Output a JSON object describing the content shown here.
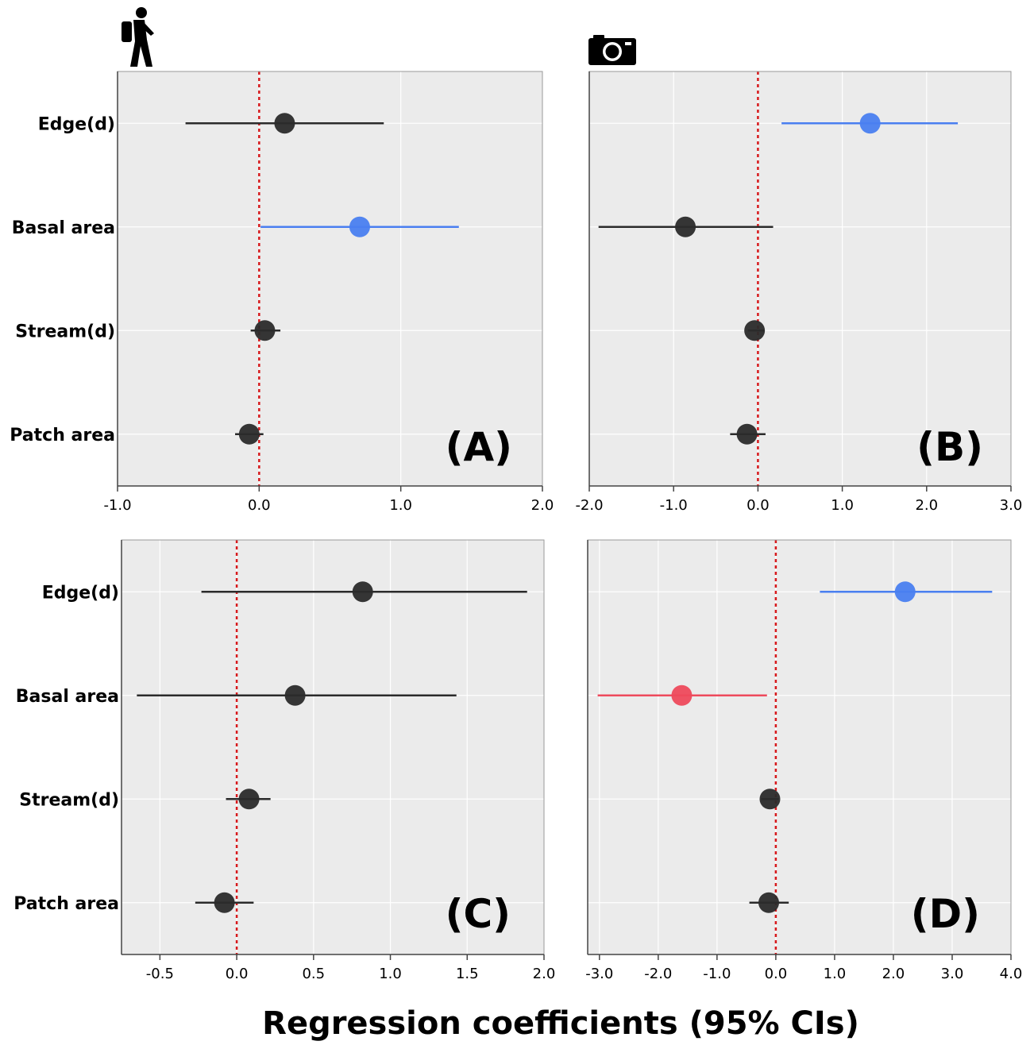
{
  "x_axis_title": "Regression coefficients (95% CIs)",
  "icons": {
    "left_column": "hiker-icon",
    "right_column": "camera-icon"
  },
  "colors": {
    "panel_bg": "#ebebeb",
    "grid": "#ffffff",
    "neutral": "#2b2b2b",
    "positive": "#4a7ff0",
    "negative": "#ee4a5c",
    "zero_line": "#d7191c"
  },
  "chart_data": [
    {
      "id": "A",
      "type": "scatter",
      "panel_label": "(A)",
      "icon": "hiker-icon",
      "categories": [
        "Edge(d)",
        "Basal area",
        "Stream(d)",
        "Patch area"
      ],
      "xlim": [
        -1.0,
        2.0
      ],
      "xticks": [
        -1.0,
        0.0,
        1.0,
        2.0
      ],
      "xtick_labels": [
        "-1.0",
        "0.0",
        "1.0",
        "2.0"
      ],
      "points": [
        {
          "category": "Edge(d)",
          "estimate": 0.18,
          "lower": -0.52,
          "upper": 0.88,
          "color": "neutral"
        },
        {
          "category": "Basal area",
          "estimate": 0.71,
          "lower": 0.01,
          "upper": 1.41,
          "color": "positive"
        },
        {
          "category": "Stream(d)",
          "estimate": 0.04,
          "lower": -0.06,
          "upper": 0.15,
          "color": "neutral"
        },
        {
          "category": "Patch area",
          "estimate": -0.07,
          "lower": -0.17,
          "upper": 0.03,
          "color": "neutral"
        }
      ]
    },
    {
      "id": "B",
      "type": "scatter",
      "panel_label": "(B)",
      "icon": "camera-icon",
      "categories": [
        "Edge(d)",
        "Basal area",
        "Stream(d)",
        "Patch area"
      ],
      "xlim": [
        -2.0,
        3.0
      ],
      "xticks": [
        -2.0,
        -1.0,
        0.0,
        1.0,
        2.0,
        3.0
      ],
      "xtick_labels": [
        "-2.0",
        "-1.0",
        "0.0",
        "1.0",
        "2.0",
        "3.0"
      ],
      "points": [
        {
          "category": "Edge(d)",
          "estimate": 1.33,
          "lower": 0.28,
          "upper": 2.37,
          "color": "positive"
        },
        {
          "category": "Basal area",
          "estimate": -0.86,
          "lower": -1.89,
          "upper": 0.18,
          "color": "neutral"
        },
        {
          "category": "Stream(d)",
          "estimate": -0.04,
          "lower": -0.12,
          "upper": 0.08,
          "color": "neutral"
        },
        {
          "category": "Patch area",
          "estimate": -0.13,
          "lower": -0.33,
          "upper": 0.09,
          "color": "neutral"
        }
      ]
    },
    {
      "id": "C",
      "type": "scatter",
      "panel_label": "(C)",
      "icon": "hiker-icon",
      "categories": [
        "Edge(d)",
        "Basal area",
        "Stream(d)",
        "Patch area"
      ],
      "xlim": [
        -0.75,
        2.0
      ],
      "xticks": [
        -0.5,
        0.0,
        0.5,
        1.0,
        1.5,
        2.0
      ],
      "xtick_labels": [
        "-0.5",
        "0.0",
        "0.5",
        "1.0",
        "1.5",
        "2.0"
      ],
      "points": [
        {
          "category": "Edge(d)",
          "estimate": 0.82,
          "lower": -0.23,
          "upper": 1.89,
          "color": "neutral"
        },
        {
          "category": "Basal area",
          "estimate": 0.38,
          "lower": -0.65,
          "upper": 1.43,
          "color": "neutral"
        },
        {
          "category": "Stream(d)",
          "estimate": 0.08,
          "lower": -0.07,
          "upper": 0.22,
          "color": "neutral"
        },
        {
          "category": "Patch area",
          "estimate": -0.08,
          "lower": -0.27,
          "upper": 0.11,
          "color": "neutral"
        }
      ]
    },
    {
      "id": "D",
      "type": "scatter",
      "panel_label": "(D)",
      "icon": "camera-icon",
      "categories": [
        "Edge(d)",
        "Basal area",
        "Stream(d)",
        "Patch area"
      ],
      "xlim": [
        -3.2,
        4.0
      ],
      "xticks": [
        -3.0,
        -2.0,
        -1.0,
        0.0,
        1.0,
        2.0,
        3.0,
        4.0
      ],
      "xtick_labels": [
        "-3.0",
        "-2.0",
        "-1.0",
        "0.0",
        "1.0",
        "2.0",
        "3.0",
        "4.0"
      ],
      "points": [
        {
          "category": "Edge(d)",
          "estimate": 2.2,
          "lower": 0.75,
          "upper": 3.68,
          "color": "positive"
        },
        {
          "category": "Basal area",
          "estimate": -1.6,
          "lower": -3.03,
          "upper": -0.15,
          "color": "negative"
        },
        {
          "category": "Stream(d)",
          "estimate": -0.1,
          "lower": -0.25,
          "upper": 0.05,
          "color": "neutral"
        },
        {
          "category": "Patch area",
          "estimate": -0.12,
          "lower": -0.45,
          "upper": 0.22,
          "color": "neutral"
        }
      ]
    }
  ]
}
